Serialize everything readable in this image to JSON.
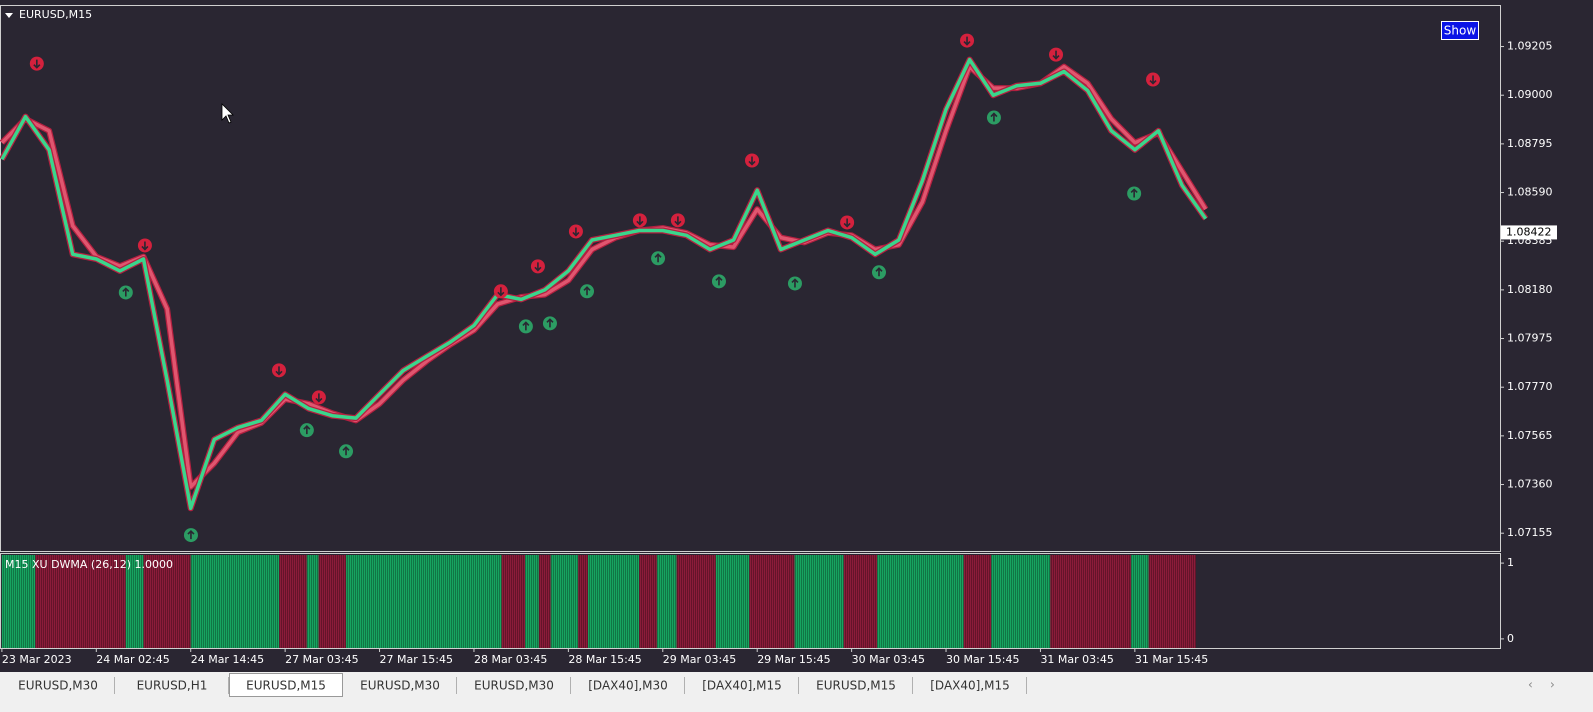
{
  "chart_data": {
    "type": "line",
    "title": "EURUSD,M15",
    "button": "Show",
    "categories": [
      "23 Mar 2023",
      null,
      null,
      null,
      "24 Mar 02:45",
      null,
      null,
      null,
      "24 Mar 14:45",
      null,
      null,
      null,
      "27 Mar 03:45",
      null,
      null,
      null,
      "27 Mar 15:45",
      null,
      null,
      null,
      "28 Mar 03:45",
      null,
      null,
      null,
      "28 Mar 15:45",
      null,
      null,
      null,
      "29 Mar 03:45",
      null,
      null,
      null,
      "29 Mar 15:45",
      null,
      null,
      null,
      "30 Mar 03:45",
      null,
      null,
      null,
      "30 Mar 15:45",
      null,
      null,
      null,
      "31 Mar 03:45",
      null,
      null,
      null,
      "31 Mar 15:45",
      null,
      null,
      null,
      null,
      null,
      null,
      null,
      null,
      null,
      null,
      null,
      null,
      null,
      null,
      null
    ],
    "xlim": [
      -0.08,
      63.47
    ],
    "ylim": [
      1.0708,
      1.0938
    ],
    "yticks": [
      1.09205,
      {
        "value": 1.09,
        "label": "1.09000"
      },
      1.08795,
      {
        "value": 1.0859,
        "label": "1.08590"
      },
      1.08385,
      {
        "value": 1.0818,
        "label": "1.08180"
      },
      1.07975,
      {
        "value": 1.0777,
        "label": "1.07770"
      },
      1.07565,
      {
        "value": 1.0736,
        "label": "1.07360"
      },
      1.07155
    ],
    "current_price": 1.08422,
    "series": [
      {
        "color": "#e0566f",
        "values": [
          1.088,
          1.089,
          1.0885,
          1.0845,
          1.0832,
          1.0828,
          1.0832,
          1.081,
          1.0735,
          1.0745,
          1.0758,
          1.0762,
          1.0772,
          1.077,
          1.0766,
          1.0763,
          1.077,
          1.078,
          1.0788,
          1.0795,
          1.0801,
          1.0812,
          1.0815,
          1.0816,
          1.0822,
          1.0835,
          1.084,
          1.0843,
          1.0844,
          1.0842,
          1.0837,
          1.0836,
          1.0852,
          1.084,
          1.0838,
          1.0842,
          1.0841,
          1.0835,
          1.0837,
          1.0855,
          1.0885,
          1.0912,
          1.0903,
          1.0903,
          1.0905,
          1.0912,
          1.0905,
          1.089,
          1.088,
          1.0884,
          1.0868,
          1.0852,
          null,
          null,
          null,
          null,
          null,
          null,
          null,
          null,
          null,
          null,
          null,
          null
        ]
      },
      {
        "color": "#3ad68c",
        "values": [
          1.0873,
          1.0891,
          1.0877,
          1.0833,
          1.0831,
          1.0826,
          1.0831,
          1.078,
          1.0726,
          1.0755,
          1.076,
          1.0763,
          1.0774,
          1.0768,
          1.0765,
          1.0764,
          1.0774,
          1.0784,
          1.079,
          1.0796,
          1.0803,
          1.0816,
          1.0814,
          1.0818,
          1.0826,
          1.0839,
          1.0841,
          1.0843,
          1.0843,
          1.0841,
          1.0835,
          1.0839,
          1.086,
          1.0835,
          1.0839,
          1.0843,
          1.084,
          1.0833,
          1.0839,
          1.0864,
          1.0894,
          1.0915,
          1.09,
          1.0904,
          1.0905,
          1.091,
          1.0902,
          1.0885,
          1.0877,
          1.0885,
          1.0862,
          1.0848,
          null,
          null,
          null,
          null,
          null,
          null,
          null,
          null,
          null,
          null,
          null,
          null
        ]
      }
    ],
    "signal_colors": {
      "down": "#d4213d",
      "up": "#2c9c63"
    },
    "signals": [
      {
        "x": 1.48,
        "y": 1.09133,
        "dir": "down"
      },
      {
        "x": 6.06,
        "y": 1.08367,
        "dir": "down"
      },
      {
        "x": 11.74,
        "y": 1.07841,
        "dir": "down"
      },
      {
        "x": 13.43,
        "y": 1.07727,
        "dir": "down"
      },
      {
        "x": 21.14,
        "y": 1.08174,
        "dir": "down"
      },
      {
        "x": 22.71,
        "y": 1.08279,
        "dir": "down"
      },
      {
        "x": 24.32,
        "y": 1.08426,
        "dir": "down"
      },
      {
        "x": 27.03,
        "y": 1.08473,
        "dir": "down"
      },
      {
        "x": 28.64,
        "y": 1.08473,
        "dir": "down"
      },
      {
        "x": 31.78,
        "y": 1.08725,
        "dir": "down"
      },
      {
        "x": 35.81,
        "y": 1.08464,
        "dir": "down"
      },
      {
        "x": 40.89,
        "y": 1.0923,
        "dir": "down"
      },
      {
        "x": 44.66,
        "y": 1.09171,
        "dir": "down"
      },
      {
        "x": 48.77,
        "y": 1.09066,
        "dir": "down"
      },
      {
        "x": 5.25,
        "y": 1.08169,
        "dir": "up"
      },
      {
        "x": 8.01,
        "y": 1.07147,
        "dir": "up"
      },
      {
        "x": 12.92,
        "y": 1.07589,
        "dir": "up"
      },
      {
        "x": 14.58,
        "y": 1.075,
        "dir": "up"
      },
      {
        "x": 22.2,
        "y": 1.08026,
        "dir": "up"
      },
      {
        "x": 23.22,
        "y": 1.08039,
        "dir": "up"
      },
      {
        "x": 24.79,
        "y": 1.08174,
        "dir": "up"
      },
      {
        "x": 27.8,
        "y": 1.08313,
        "dir": "up"
      },
      {
        "x": 30.38,
        "y": 1.08216,
        "dir": "up"
      },
      {
        "x": 33.6,
        "y": 1.08207,
        "dir": "up"
      },
      {
        "x": 37.16,
        "y": 1.08254,
        "dir": "up"
      },
      {
        "x": 42.03,
        "y": 1.08906,
        "dir": "up"
      },
      {
        "x": 47.97,
        "y": 1.08586,
        "dir": "up"
      }
    ],
    "indicator": {
      "title": "M15 XU DWMA (26,12) 1.0000",
      "ylim": [
        -0.12,
        1.12
      ],
      "yticks": [
        1,
        0
      ],
      "bars_per_category": 12,
      "colors": {
        "up": "#17a460",
        "down": "#8b1c3a"
      },
      "segments": [
        {
          "dir": "up",
          "bars": 17
        },
        {
          "dir": "down",
          "bars": 46
        },
        {
          "dir": "up",
          "bars": 9
        },
        {
          "dir": "down",
          "bars": 24
        },
        {
          "dir": "up",
          "bars": 45
        },
        {
          "dir": "down",
          "bars": 14
        },
        {
          "dir": "up",
          "bars": 6
        },
        {
          "dir": "down",
          "bars": 14
        },
        {
          "dir": "up",
          "bars": 79
        },
        {
          "dir": "down",
          "bars": 12
        },
        {
          "dir": "up",
          "bars": 7
        },
        {
          "dir": "down",
          "bars": 6
        },
        {
          "dir": "up",
          "bars": 14
        },
        {
          "dir": "down",
          "bars": 5
        },
        {
          "dir": "up",
          "bars": 26
        },
        {
          "dir": "down",
          "bars": 9
        },
        {
          "dir": "up",
          "bars": 10
        },
        {
          "dir": "down",
          "bars": 20
        },
        {
          "dir": "up",
          "bars": 17
        },
        {
          "dir": "down",
          "bars": 23
        },
        {
          "dir": "up",
          "bars": 25
        },
        {
          "dir": "down",
          "bars": 17
        },
        {
          "dir": "up",
          "bars": 44
        },
        {
          "dir": "down",
          "bars": 14
        },
        {
          "dir": "up",
          "bars": 30
        },
        {
          "dir": "down",
          "bars": 41
        },
        {
          "dir": "up",
          "bars": 9
        },
        {
          "dir": "down",
          "bars": 24
        }
      ]
    }
  },
  "tabs": [
    "EURUSD,M30",
    "EURUSD,H1",
    "EURUSD,M15",
    "EURUSD,M30",
    "EURUSD,M30",
    "[DAX40],M30",
    "[DAX40],M15",
    "EURUSD,M15",
    "[DAX40],M15"
  ],
  "active_tab": 2
}
